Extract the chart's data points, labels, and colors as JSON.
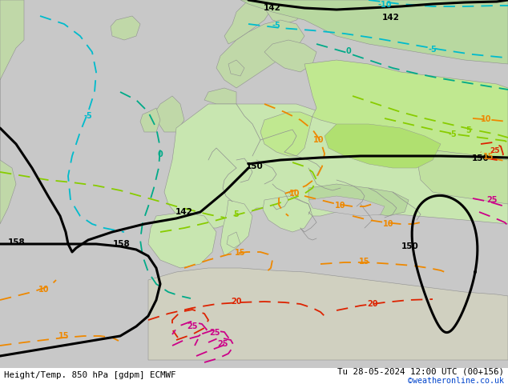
{
  "title_left": "Height/Temp. 850 hPa [gdpm] ECMWF",
  "title_right": "Tu 28-05-2024 12:00 UTC (00+156)",
  "credit": "©weatheronline.co.uk",
  "figsize": [
    6.34,
    4.9
  ],
  "dpi": 100,
  "bg_ocean": "#d0d0d0",
  "bg_land_light": "#c8e6b0",
  "bg_land_green": "#b8e090",
  "border_color": "#a0a0a0",
  "black_lw": 2.0,
  "colored_lw": 1.2,
  "bottom_bar_color": "#ffffff",
  "text_color": "#000000",
  "credit_color": "#0044cc",
  "contours": {
    "geopotential_color": "#000000",
    "temp_neg10_color": "#00bbbb",
    "temp_neg5_color": "#00bbbb",
    "temp_0_color": "#00aa88",
    "temp_5_color": "#88cc00",
    "temp_10_color": "#ee8800",
    "temp_15_color": "#ee8800",
    "temp_20_color": "#dd2200",
    "temp_25_color": "#cc0088"
  }
}
